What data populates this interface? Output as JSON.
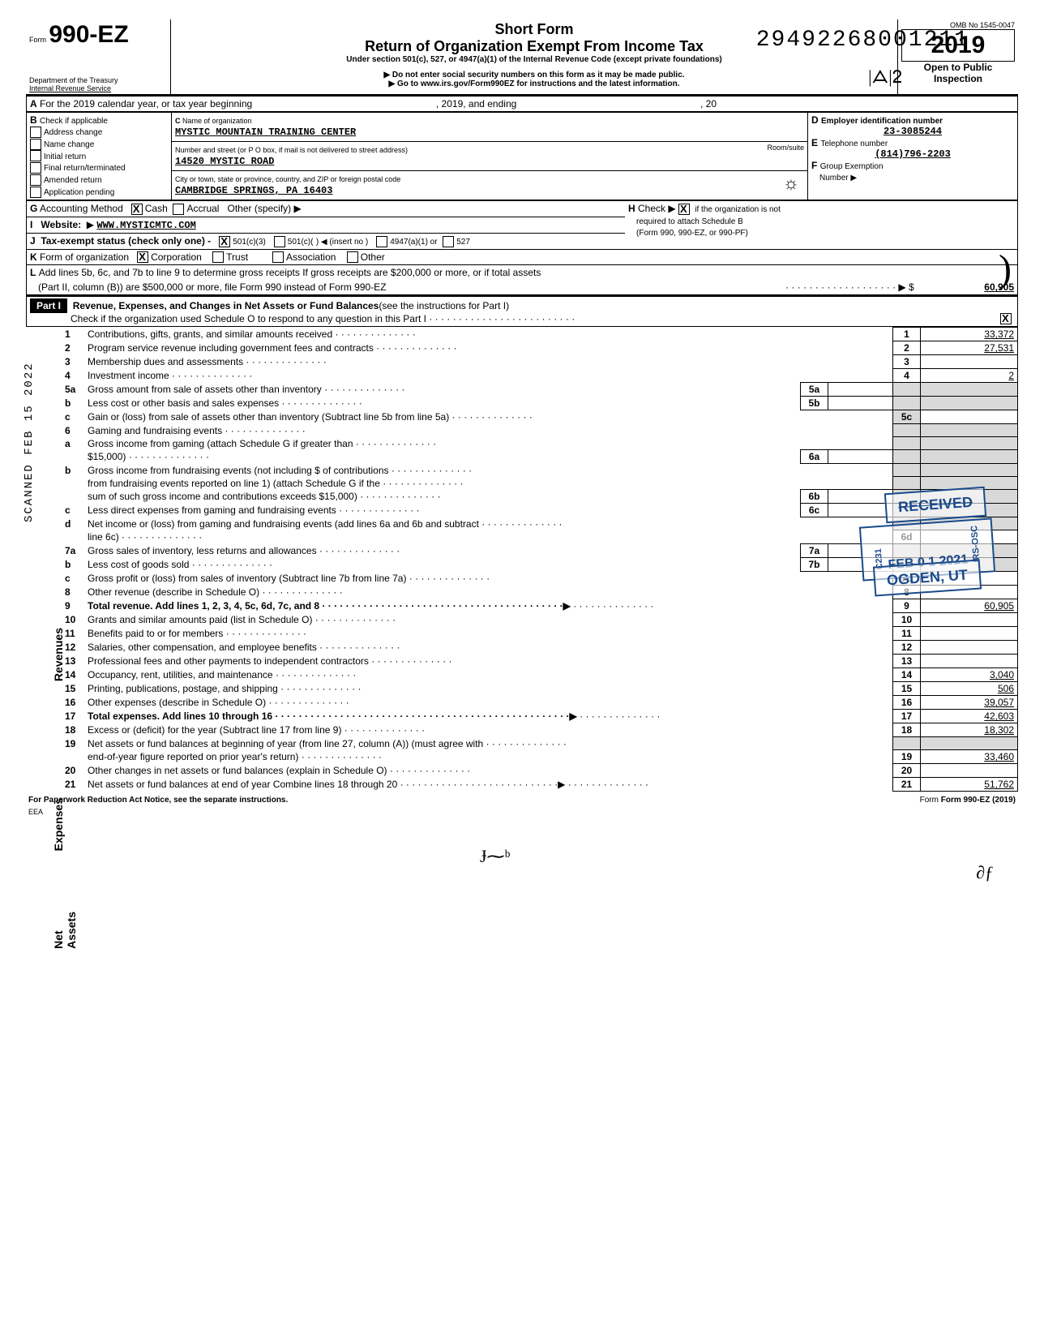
{
  "dln": "29492268001211",
  "header": {
    "form_no_label": "Form",
    "form_no": "990-EZ",
    "title1": "Short Form",
    "title2": "Return of Organization Exempt From Income Tax",
    "subtitle": "Under section 501(c), 527, or 4947(a)(1) of the Internal Revenue Code (except private foundations)",
    "warn1": "Do not enter social security numbers on this form as it may be made public.",
    "warn2": "Go to www.irs.gov/Form990EZ for instructions and the latest information.",
    "dept": "Department of the Treasury",
    "irs": "Internal Revenue Service",
    "omb": "OMB No  1545-0047",
    "year": "2019",
    "open": "Open to Public",
    "inspect": "Inspection"
  },
  "sectionA": {
    "lineA": "For the 2019 calendar year, or tax year beginning",
    "lineA_mid": ", 2019, and ending",
    "lineA_end": ", 20",
    "B_label": "Check if applicable",
    "B_items": [
      "Address change",
      "Name change",
      "Initial return",
      "Final return/terminated",
      "Amended return",
      "Application pending"
    ],
    "C_label": "Name of organization",
    "C_value": "MYSTIC MOUNTAIN TRAINING CENTER",
    "addr_label": "Number and street (or P O box, if mail is not delivered to street address)",
    "addr_value": "14520 MYSTIC ROAD",
    "room_label": "Room/suite",
    "city_label": "City or town, state or province, country, and ZIP or foreign postal code",
    "city_value": "CAMBRIDGE SPRINGS, PA 16403",
    "D_label": "Employer identification number",
    "D_value": "23-3085244",
    "E_label": "Telephone number",
    "E_value": "(814)796-2203",
    "F_label": "Group Exemption",
    "F_label2": "Number  ▶",
    "G_label": "Accounting Method",
    "G_cash": "Cash",
    "G_accrual": "Accrual",
    "G_other": "Other (specify) ▶",
    "H_label": "Check ▶",
    "H_text": "if the organization is not",
    "H_text2": "required to attach Schedule B",
    "H_text3": "(Form 990, 990-EZ, or 990-PF)",
    "I_label": "Website:",
    "I_value": "WWW.MYSTICMTC.COM",
    "J_label": "Tax-exempt status (check only one) -",
    "J_1": "501(c)(3)",
    "J_2": "501(c)(",
    "J_3": ") ◀ (insert no )",
    "J_4": "4947(a)(1) or",
    "J_5": "527",
    "K_label": "Form of organization",
    "K_1": "Corporation",
    "K_2": "Trust",
    "K_3": "Association",
    "K_4": "Other",
    "L_text": "Add lines 5b, 6c, and 7b to line 9 to determine gross receipts  If gross receipts are $200,000 or more, or if total assets",
    "L_text2": "(Part II, column (B)) are $500,000 or more, file Form 990 instead of Form 990-EZ",
    "L_arrow": "· · · · · · · · · · · · · · · · · · · ▶ $",
    "L_value": "60,905"
  },
  "part1": {
    "label": "Part I",
    "title": "Revenue, Expenses, and Changes in Net Assets or Fund Balances",
    "paren": "(see the instructions for Part I)",
    "check_line": "Check if the organization used Schedule O to respond to any question in this Part I   · · · · · · · · · · · · · · · · · · · · · · · · ·"
  },
  "lines": [
    {
      "n": "1",
      "label": "Contributions, gifts, grants, and similar amounts received",
      "num": "1",
      "val": "33,372"
    },
    {
      "n": "2",
      "label": "Program service revenue including government fees and contracts",
      "num": "2",
      "val": "27,531"
    },
    {
      "n": "3",
      "label": "Membership dues and assessments",
      "num": "3",
      "val": ""
    },
    {
      "n": "4",
      "label": "Investment income",
      "num": "4",
      "val": "2"
    },
    {
      "n": "5a",
      "label": "Gross amount from sale of assets other than inventory",
      "sub": "5a",
      "subval": ""
    },
    {
      "n": "b",
      "label": "Less  cost or other basis and sales expenses",
      "sub": "5b",
      "subval": ""
    },
    {
      "n": "c",
      "label": "Gain or (loss) from sale of assets other than inventory (Subtract line 5b from line 5a)",
      "num": "5c",
      "val": "",
      "grey": true
    },
    {
      "n": "6",
      "label": "Gaming and fundraising events",
      "plain": true
    },
    {
      "n": "a",
      "label": "Gross income from gaming (attach Schedule G if greater than",
      "plain": true
    },
    {
      "n": "",
      "label": "$15,000)",
      "sub": "6a",
      "subval": ""
    },
    {
      "n": "b",
      "label": "Gross income from fundraising events (not including    $                            of contributions",
      "plain": true
    },
    {
      "n": "",
      "label": "from fundraising events reported on line 1) (attach Schedule G if the",
      "plain": true
    },
    {
      "n": "",
      "label": "sum of such gross income and contributions exceeds $15,000)",
      "sub": "6b",
      "subval": ""
    },
    {
      "n": "c",
      "label": "Less  direct expenses from gaming and fundraising events",
      "sub": "6c",
      "subval": ""
    },
    {
      "n": "d",
      "label": "Net income or (loss) from gaming and fundraising events (add lines 6a and 6b and subtract",
      "plain": true
    },
    {
      "n": "",
      "label": "line 6c)",
      "num": "6d",
      "val": ""
    },
    {
      "n": "7a",
      "label": "Gross sales of inventory, less returns and allowances",
      "sub": "7a",
      "subval": ""
    },
    {
      "n": "b",
      "label": "Less  cost of goods sold",
      "sub": "7b",
      "subval": ""
    },
    {
      "n": "c",
      "label": "Gross profit or (loss) from sales of inventory (Subtract line 7b from line 7a)",
      "num": "7c",
      "val": ""
    },
    {
      "n": "8",
      "label": "Other revenue (describe in Schedule O)",
      "num": "8",
      "val": ""
    },
    {
      "n": "9",
      "label": "Total revenue.  Add lines 1, 2, 3, 4, 5c, 6d, 7c, and 8   · · · · · · · · · · · · · · · · · · · · · · · · · · · · · · · · · · · · · · · · ·▶",
      "num": "9",
      "val": "60,905",
      "bold": true
    },
    {
      "n": "10",
      "label": "Grants and similar amounts paid (list in Schedule O)",
      "num": "10",
      "val": ""
    },
    {
      "n": "11",
      "label": "Benefits paid to or for members",
      "num": "11",
      "val": ""
    },
    {
      "n": "12",
      "label": "Salaries, other compensation, and employee benefits",
      "num": "12",
      "val": ""
    },
    {
      "n": "13",
      "label": "Professional fees and other payments to independent contractors",
      "num": "13",
      "val": ""
    },
    {
      "n": "14",
      "label": "Occupancy, rent, utilities, and maintenance",
      "num": "14",
      "val": "3,040"
    },
    {
      "n": "15",
      "label": "Printing, publications, postage, and shipping",
      "num": "15",
      "val": "506"
    },
    {
      "n": "16",
      "label": "Other expenses (describe in Schedule O)",
      "num": "16",
      "val": "39,057"
    },
    {
      "n": "17",
      "label": "Total expenses.  Add lines 10 through 16 · · · · · · · · · · · · · · · · · · · · · · · · · · · · · · · · · · · · · · · · · · · · · · · · · ·▶",
      "num": "17",
      "val": "42,603",
      "bold": true
    },
    {
      "n": "18",
      "label": "Excess or (deficit) for the year (Subtract line 17 from line 9)",
      "num": "18",
      "val": "18,302"
    },
    {
      "n": "19",
      "label": "Net assets or fund balances at beginning of year (from line 27, column (A)) (must agree with",
      "plain": true
    },
    {
      "n": "",
      "label": "end-of-year figure reported on prior year's return)",
      "num": "19",
      "val": "33,460"
    },
    {
      "n": "20",
      "label": "Other changes in net assets or fund balances (explain in Schedule O)",
      "num": "20",
      "val": ""
    },
    {
      "n": "21",
      "label": "Net assets or fund balances at end of year  Combine lines 18 through 20  · · · · · · · · · · · · · · · · · · · · · · · · · · ·▶",
      "num": "21",
      "val": "51,762"
    }
  ],
  "footer": {
    "left": "For Paperwork Reduction Act Notice, see the separate instructions.",
    "eea": "EEA",
    "right": "Form 990-EZ (2019)"
  },
  "stamps": {
    "received": "RECEIVED",
    "date_prefix": "C231",
    "date": "FEB 0 1 2021",
    "irs_osc": "IRS-OSC",
    "ogden": "OGDEN, UT"
  },
  "scan_side": "SCANNED FEB 15 2022",
  "side_rev": "Revenues",
  "side_exp": "Expenses",
  "side_na": "Net Assets",
  "annotations": {
    "top_initials": "|ᗋ|ᒿ",
    "scribble_1": "☼",
    "checkmark": "✓",
    "bracket": ")",
    "bottom_sig": "Ɉ⁓ᵇ",
    "bottom_init": "∂ƒ"
  },
  "colors": {
    "stamp": "#1a4a8a",
    "grey": "#d9d9d9"
  }
}
